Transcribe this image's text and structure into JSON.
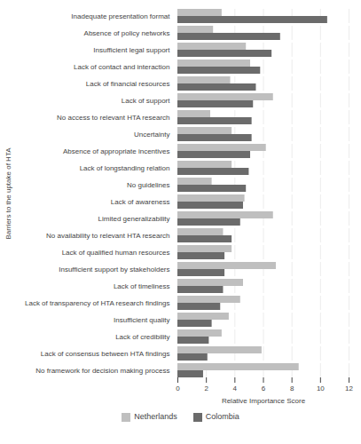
{
  "chart_data": {
    "type": "bar",
    "orientation": "horizontal",
    "xlabel": "Relative Importance Score",
    "ylabel": "Barriers to the uptake of HTA",
    "categories": [
      "Inadequate presentation format",
      "Absence of policy networks",
      "Insufficient legal support",
      "Lack of contact and interaction",
      "Lack of financial resources",
      "Lack of support",
      "No access to relevant HTA research",
      "Uncertainty",
      "Absence of appropriate incentives",
      "Lack of longstanding relation",
      "No guidelines",
      "Lack of awareness",
      "Limited generalizability",
      "No availability to relevant HTA research",
      "Lack of qualified human resources",
      "Insufficient support by stakeholders",
      "Lack of timeliness",
      "Lack of transparency of HTA research findings",
      "Insufficient quality",
      "Lack of credibility",
      "Lack of consensus between HTA findings",
      "No framework for decision making process"
    ],
    "series": [
      {
        "name": "Netherlands",
        "color": "#bfbfbf",
        "values": [
          3.1,
          2.5,
          4.8,
          5.1,
          3.7,
          6.7,
          2.3,
          3.8,
          6.2,
          3.8,
          2.4,
          4.7,
          6.7,
          3.2,
          3.8,
          6.9,
          4.6,
          4.4,
          3.6,
          3.1,
          5.9,
          8.5
        ]
      },
      {
        "name": "Colombia",
        "color": "#6b6b6b",
        "values": [
          10.5,
          7.2,
          6.6,
          5.8,
          5.5,
          5.3,
          5.2,
          5.2,
          5.1,
          5.0,
          4.8,
          4.6,
          4.4,
          3.8,
          3.3,
          3.3,
          3.2,
          3.0,
          2.4,
          2.2,
          2.1,
          1.8
        ]
      }
    ],
    "xlim": [
      0,
      12
    ],
    "xticks": [
      0,
      2,
      4,
      6,
      8,
      10,
      12
    ],
    "grid": true,
    "legend": "bottom"
  }
}
